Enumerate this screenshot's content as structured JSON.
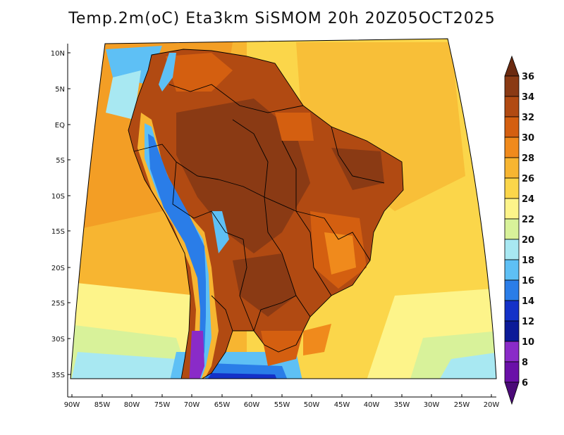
{
  "title": "Temp.2m(oC) Eta3km SiSMOM 20h 20Z05OCT2025",
  "axes": {
    "lat_labels": [
      "10N",
      "5N",
      "EQ",
      "5S",
      "10S",
      "15S",
      "20S",
      "25S",
      "30S",
      "35S"
    ],
    "lon_labels": [
      "90W",
      "85W",
      "80W",
      "75W",
      "70W",
      "65W",
      "60W",
      "55W",
      "50W",
      "45W",
      "40W",
      "35W",
      "30W",
      "25W",
      "20W"
    ]
  },
  "colorbar": {
    "labels": [
      "36",
      "34",
      "32",
      "30",
      "28",
      "26",
      "24",
      "22",
      "20",
      "18",
      "16",
      "14",
      "12",
      "10",
      "8",
      "6"
    ],
    "colors": {
      "above36": "#6b2a10",
      "c34_36": "#8a3a14",
      "c32_34": "#b14a12",
      "c30_32": "#d45f10",
      "c28_30": "#f08a1c",
      "c26_28": "#f7b531",
      "c24_26": "#fbd64a",
      "c22_24": "#fdf48a",
      "c20_22": "#d8f29a",
      "c18_20": "#a8e8f2",
      "c16_18": "#5ec0f5",
      "c14_16": "#2a7de8",
      "c12_14": "#1431c8",
      "c10_12": "#0c1a98",
      "c8_10": "#8a2bc8",
      "c6_8": "#6a10a8",
      "below6": "#4b0a78"
    }
  }
}
